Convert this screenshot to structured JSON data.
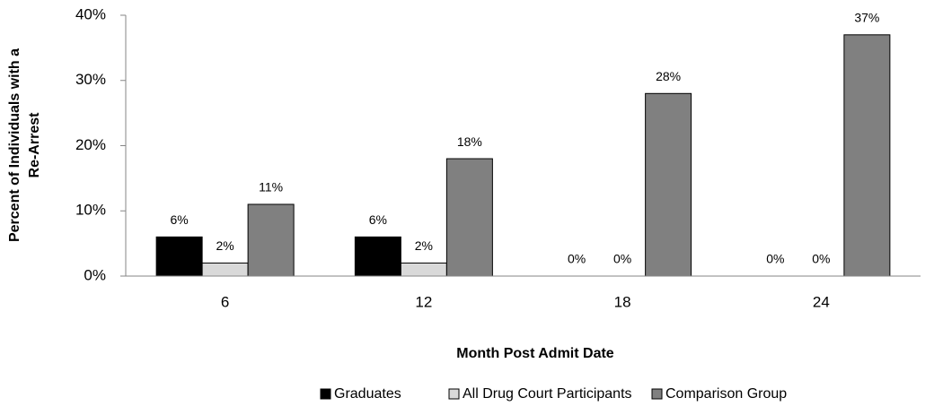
{
  "chart_data": {
    "type": "bar",
    "x_label": "Month Post Admit Date",
    "y_label": [
      "Percent of Individuals with a",
      "Re-Arrest"
    ],
    "categories": [
      "6",
      "12",
      "18",
      "24"
    ],
    "series": [
      {
        "name": "Graduates",
        "color": "#000000",
        "values": [
          6,
          6,
          0,
          0
        ],
        "value_labels": [
          "6%",
          "6%",
          "0%",
          "0%"
        ]
      },
      {
        "name": "All Drug Court Participants",
        "color": "#d9d9d9",
        "values": [
          2,
          2,
          0,
          0
        ],
        "value_labels": [
          "2%",
          "2%",
          "0%",
          "0%"
        ]
      },
      {
        "name": "Comparison Group",
        "color": "#808080",
        "values": [
          11,
          18,
          28,
          37
        ],
        "value_labels": [
          "11%",
          "18%",
          "28%",
          "37%"
        ]
      }
    ],
    "ylim": [
      0,
      40
    ],
    "yticks": [
      {
        "value": 0,
        "label": "0%"
      },
      {
        "value": 10,
        "label": "10%"
      },
      {
        "value": 20,
        "label": "20%"
      },
      {
        "value": 30,
        "label": "30%"
      },
      {
        "value": 40,
        "label": "40%"
      }
    ],
    "grid": false,
    "legend": "bottom"
  }
}
